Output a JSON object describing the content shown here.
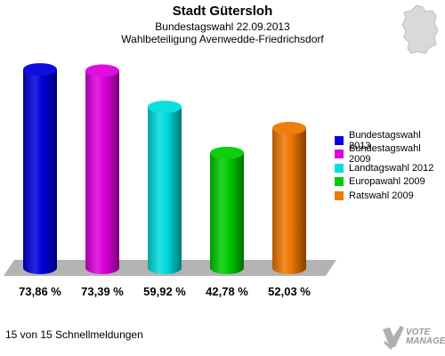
{
  "header": {
    "title": "Stadt Gütersloh",
    "subtitle1": "Bundestagswahl 22.09.2013",
    "subtitle2": "Wahlbeteiligung Avenwedde-Friedrichsdorf"
  },
  "footer": {
    "status": "15 von 15 Schnellmeldungen"
  },
  "logo": {
    "line1": "VOTE",
    "line2": "MANAGER"
  },
  "chart_data": {
    "type": "bar",
    "title": "Stadt Gütersloh",
    "categories": [
      "Bundestagswahl 2013",
      "Bundestagswahl 2009",
      "Landtagswahl 2012",
      "Europawahl 2009",
      "Ratswahl 2009"
    ],
    "values": [
      73.86,
      73.39,
      59.92,
      42.78,
      52.03
    ],
    "value_labels": [
      "73,86 %",
      "73,39 %",
      "59,92 %",
      "42,78 %",
      "52,03 %"
    ],
    "colors": [
      "#0000dd",
      "#dd00dd",
      "#00dddd",
      "#00cc00",
      "#ee7700"
    ],
    "ylim": [
      0,
      80
    ],
    "legend_position": "right",
    "grid": false
  }
}
